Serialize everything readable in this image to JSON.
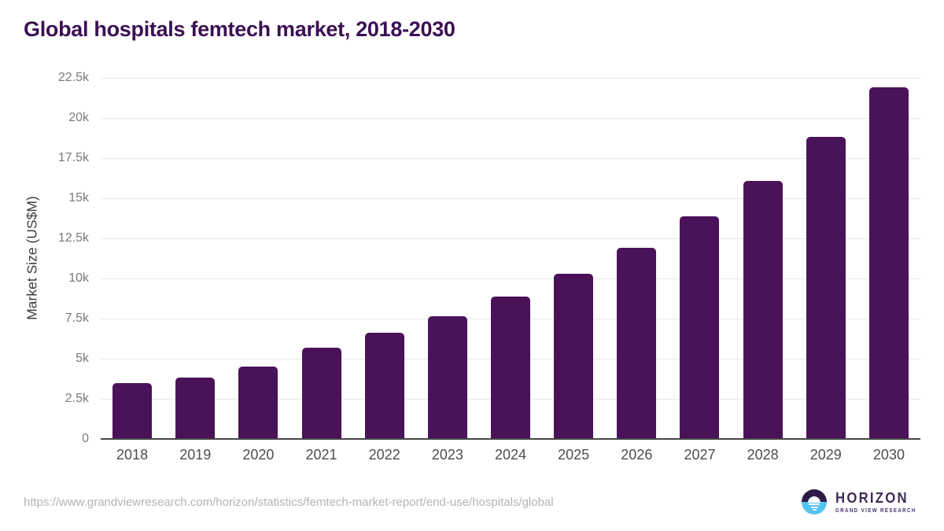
{
  "title": "Global hospitals femtech market, 2018-2030",
  "chart_data": {
    "type": "bar",
    "categories": [
      "2018",
      "2019",
      "2020",
      "2021",
      "2022",
      "2023",
      "2024",
      "2025",
      "2026",
      "2027",
      "2028",
      "2029",
      "2030"
    ],
    "values": [
      3500,
      3800,
      4500,
      5700,
      6600,
      7650,
      8850,
      10300,
      11900,
      13850,
      16100,
      18800,
      21900
    ],
    "title": "Global hospitals femtech market, 2018-2030",
    "xlabel": "",
    "ylabel": "Market Size (US$M)",
    "ylim": [
      0,
      22500
    ],
    "ytick_step": 2500,
    "ytick_labels": [
      "0",
      "2.5k",
      "5k",
      "7.5k",
      "10k",
      "12.5k",
      "15k",
      "17.5k",
      "20k",
      "22.5k"
    ],
    "grid": true,
    "legend": "none",
    "bar_color": "#4a1259"
  },
  "colors": {
    "bar": "#4a1259",
    "title_text": "#3b1053",
    "gridline": "#e8e8e8",
    "axis_line": "#474747",
    "ytick_text": "#7a7a7a",
    "xtick_text": "#4d4d4d",
    "source_text": "#b4b4b4",
    "logo_dark_purple": "#2d1a47",
    "logo_light_blue": "#54c3f1",
    "logo_wordmark": "#3e2b56"
  },
  "footer": {
    "source_url": "https://www.grandviewresearch.com/horizon/statistics/femtech-market-report/end-use/hospitals/global",
    "logo": {
      "brand": "HORIZON",
      "sub_brand": "GRAND VIEW RESEARCH"
    }
  }
}
